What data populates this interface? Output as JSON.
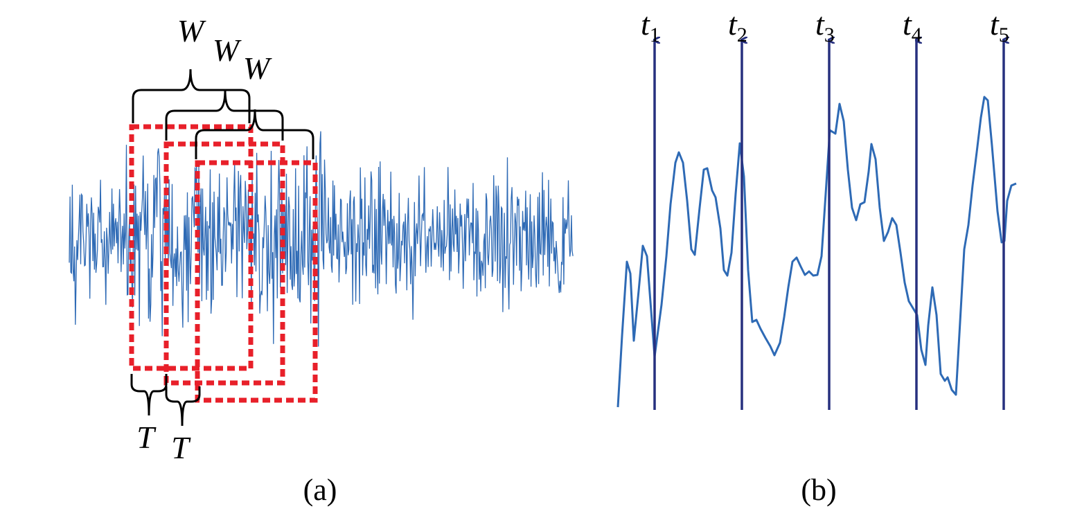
{
  "window_labels": [
    "W",
    "W",
    "W"
  ],
  "step_labels": [
    "T",
    "T"
  ],
  "markers": [
    {
      "label": "t",
      "subscript": "1"
    },
    {
      "label": "t",
      "subscript": "2"
    },
    {
      "label": "t",
      "subscript": "3"
    },
    {
      "label": "t",
      "subscript": "4"
    },
    {
      "label": "t",
      "subscript": "5"
    }
  ],
  "captions": [
    "(a)",
    "(b)"
  ]
}
